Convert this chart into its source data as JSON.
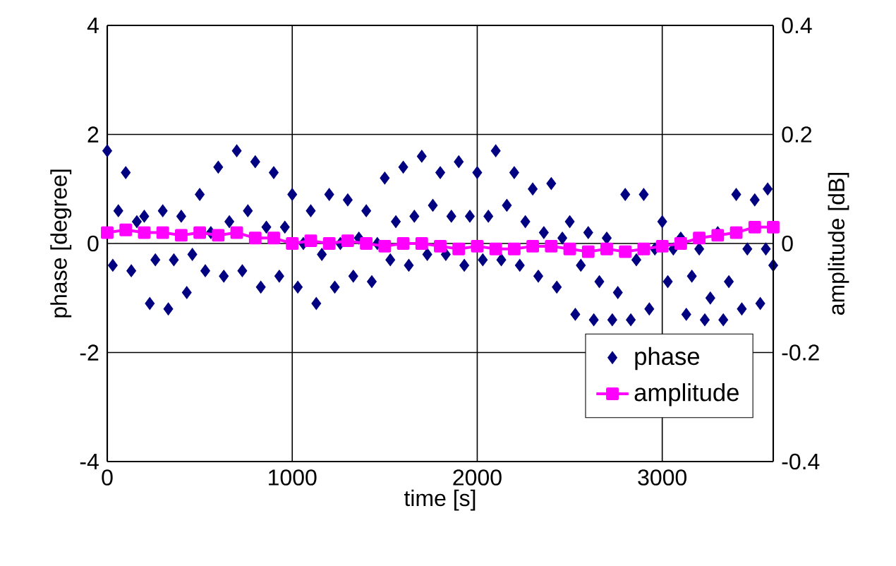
{
  "chart_data": {
    "type": "scatter",
    "xlabel": "time [s]",
    "ylabel": "phase [degree]",
    "y2label": "amplitude [dB]",
    "xlim": [
      0,
      3600
    ],
    "xticks": [
      0,
      1000,
      2000,
      3000
    ],
    "ylim": [
      -4,
      4
    ],
    "yticks": [
      -4,
      -2,
      0,
      2,
      4
    ],
    "y2lim": [
      -0.4,
      0.4
    ],
    "y2ticks": [
      -0.4,
      -0.2,
      0,
      0.2,
      0.4
    ],
    "grid": true,
    "legend": "bottom right",
    "series": [
      {
        "name": "phase",
        "marker": "diamond",
        "color": "#000080",
        "x": [
          0,
          30,
          60,
          100,
          130,
          160,
          200,
          230,
          260,
          300,
          330,
          360,
          400,
          430,
          460,
          500,
          530,
          560,
          600,
          630,
          660,
          700,
          730,
          760,
          800,
          830,
          860,
          900,
          930,
          960,
          1000,
          1030,
          1060,
          1100,
          1130,
          1160,
          1200,
          1230,
          1260,
          1300,
          1330,
          1360,
          1400,
          1430,
          1460,
          1500,
          1530,
          1560,
          1600,
          1630,
          1660,
          1700,
          1730,
          1760,
          1800,
          1830,
          1860,
          1900,
          1930,
          1960,
          2000,
          2030,
          2060,
          2100,
          2130,
          2160,
          2200,
          2230,
          2260,
          2300,
          2330,
          2360,
          2400,
          2430,
          2460,
          2500,
          2530,
          2560,
          2600,
          2630,
          2660,
          2700,
          2730,
          2760,
          2800,
          2830,
          2860,
          2900,
          2930,
          2960,
          3000,
          3030,
          3060,
          3100,
          3130,
          3160,
          3200,
          3230,
          3260,
          3300,
          3330,
          3360,
          3400,
          3430,
          3460,
          3500,
          3530,
          3560,
          3570,
          3600
        ],
        "values": [
          1.7,
          -0.4,
          0.6,
          1.3,
          -0.5,
          0.4,
          0.5,
          -1.1,
          -0.3,
          0.6,
          -1.2,
          -0.3,
          0.5,
          -0.9,
          -0.2,
          0.9,
          -0.5,
          0.2,
          1.4,
          -0.6,
          0.4,
          1.7,
          -0.5,
          0.6,
          1.5,
          -0.8,
          0.3,
          1.3,
          -0.6,
          0.3,
          0.9,
          -0.8,
          0.0,
          0.6,
          -1.1,
          -0.2,
          0.9,
          -0.8,
          0.0,
          0.8,
          -0.6,
          0.1,
          0.6,
          -0.7,
          0.0,
          1.2,
          -0.3,
          0.4,
          1.4,
          -0.4,
          0.5,
          1.6,
          -0.2,
          0.7,
          1.3,
          -0.2,
          0.5,
          1.5,
          -0.4,
          0.5,
          1.3,
          -0.3,
          0.5,
          1.7,
          -0.3,
          0.7,
          1.3,
          -0.4,
          0.4,
          1.0,
          -0.6,
          0.2,
          1.1,
          -0.8,
          0.1,
          0.4,
          -1.3,
          -0.4,
          0.2,
          -1.4,
          -0.7,
          0.1,
          -1.4,
          -0.9,
          0.9,
          -1.4,
          -0.3,
          0.9,
          -1.2,
          -0.1,
          0.4,
          -0.7,
          -0.1,
          0.1,
          -1.3,
          -0.6,
          -0.1,
          -1.4,
          -1.0,
          0.2,
          -1.4,
          -0.7,
          0.9,
          -1.2,
          -0.1,
          0.8,
          -1.1,
          -0.1,
          1.0,
          -0.4
        ]
      },
      {
        "name": "amplitude",
        "type": "line",
        "marker": "square",
        "axis": "y2",
        "color": "#ff00ff",
        "x": [
          0,
          100,
          200,
          300,
          400,
          500,
          600,
          700,
          800,
          900,
          1000,
          1100,
          1200,
          1300,
          1400,
          1500,
          1600,
          1700,
          1800,
          1900,
          2000,
          2100,
          2200,
          2300,
          2400,
          2500,
          2600,
          2700,
          2800,
          2900,
          3000,
          3100,
          3200,
          3300,
          3400,
          3500,
          3600
        ],
        "values": [
          0.02,
          0.025,
          0.02,
          0.02,
          0.015,
          0.02,
          0.015,
          0.02,
          0.01,
          0.01,
          0.0,
          0.005,
          0.0,
          0.005,
          0.0,
          -0.005,
          0.0,
          0.0,
          -0.005,
          -0.01,
          -0.005,
          -0.01,
          -0.01,
          -0.005,
          -0.005,
          -0.01,
          -0.015,
          -0.01,
          -0.015,
          -0.01,
          -0.005,
          0.0,
          0.01,
          0.015,
          0.02,
          0.03,
          0.03
        ]
      }
    ]
  }
}
